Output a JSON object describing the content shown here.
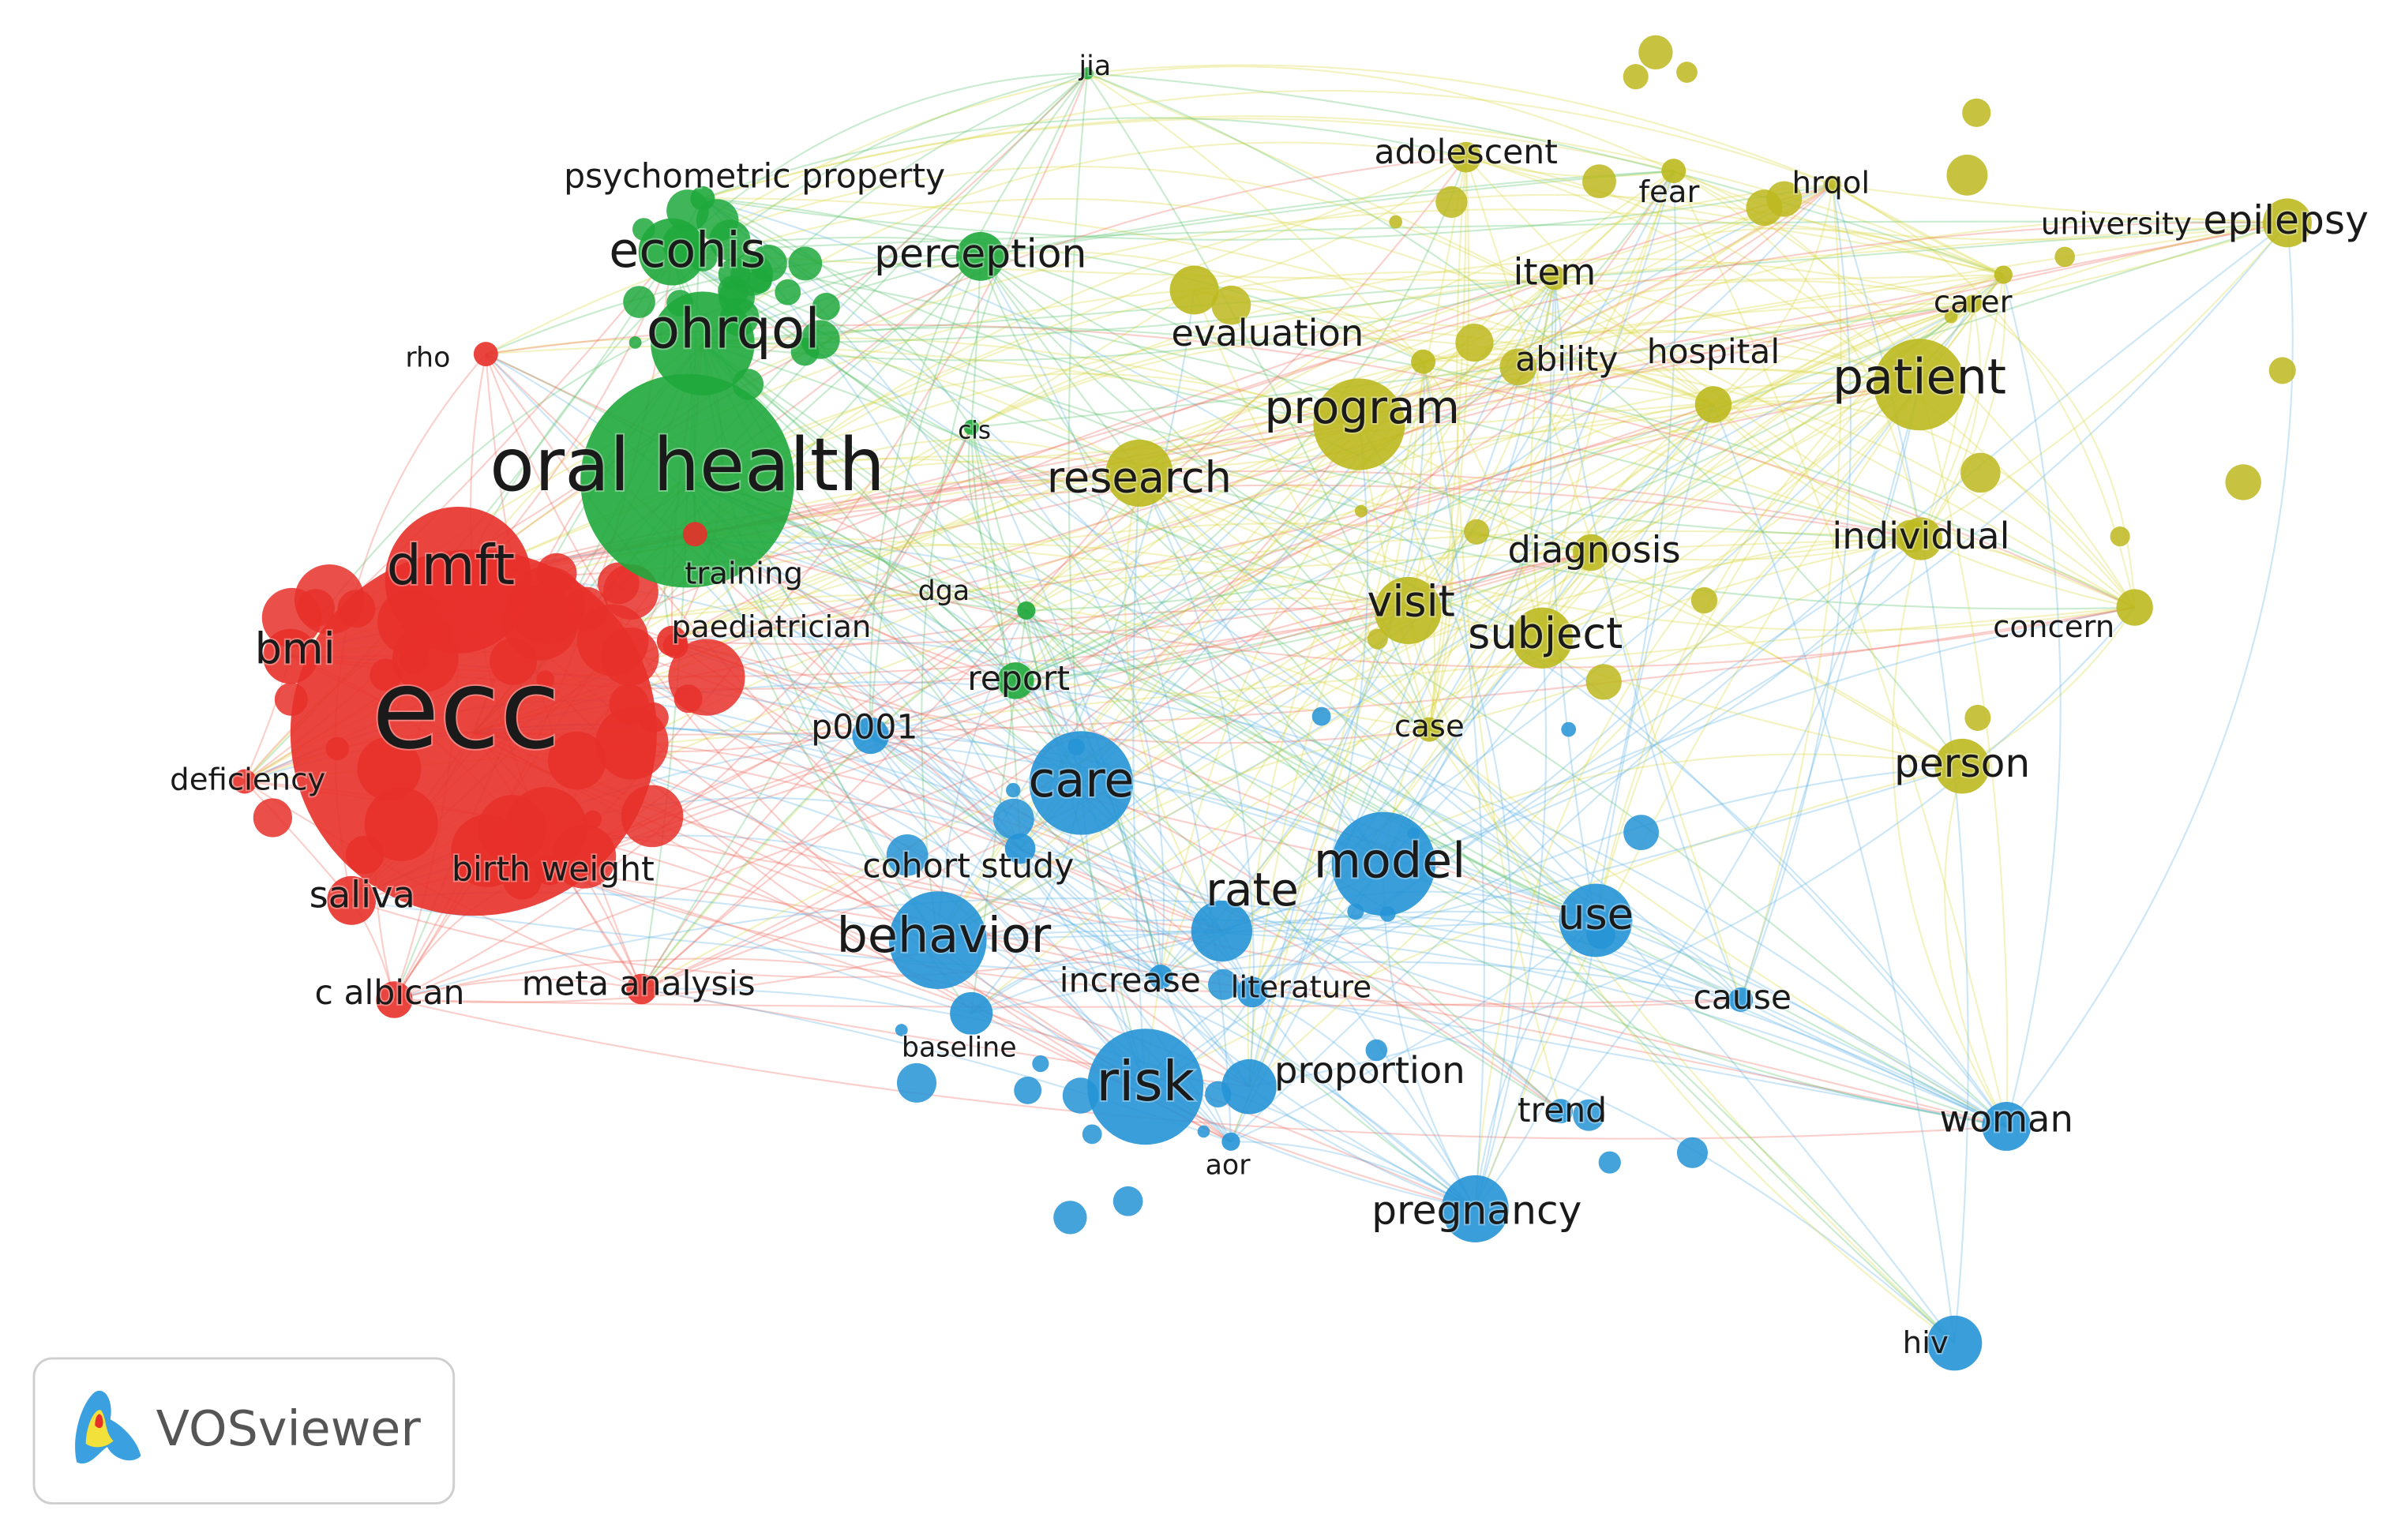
{
  "nodes": [
    "ecc",
    "dmft",
    "bmi",
    "deficiency",
    "saliva",
    "birth weight",
    "c albican",
    "meta analysis",
    "rho",
    "training",
    "paediatrician",
    "oral health",
    "ohrqol",
    "ecohis",
    "psychometric property",
    "perception",
    "jia",
    "cis",
    "dga",
    "report",
    "p0001",
    "care",
    "cohort study",
    "behavior",
    "increase",
    "literature",
    "baseline",
    "risk",
    "proportion",
    "aor",
    "trend",
    "pregnancy",
    "rate",
    "model",
    "use",
    "cause",
    "woman",
    "hiv",
    "adolescent",
    "fear",
    "hrqol",
    "university",
    "epilepsy",
    "item",
    "carer",
    "evaluation",
    "ability",
    "hospital",
    "patient",
    "program",
    "research",
    "diagnosis",
    "individual",
    "visit",
    "subject",
    "concern",
    "case",
    "person"
  ],
  "logo": "VOSviewer"
}
